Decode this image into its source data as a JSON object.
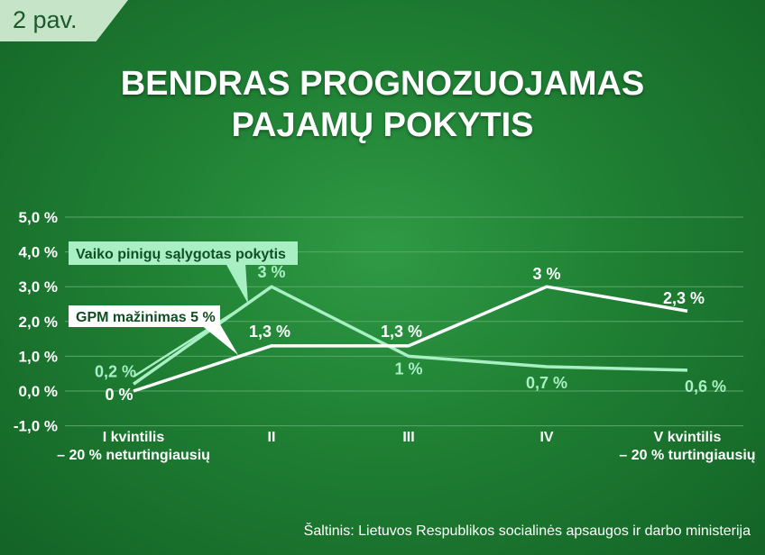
{
  "figure_tag": "2 pav.",
  "title_lines": [
    "BENDRAS PROGNOZUOJAMAS",
    "PAJAMŲ POKYTIS"
  ],
  "source": "Šaltinis: Lietuvos Respublikos socialinės apsaugos ir darbo ministerija",
  "colors": {
    "background": "#1f7f33",
    "series_light": "#a8f0c4",
    "series_white": "#ffffff",
    "grid": "#5aa86a"
  },
  "chart_data": {
    "type": "line",
    "categories": [
      [
        "I kvintilis",
        "– 20 % neturtingiausių"
      ],
      [
        "II"
      ],
      [
        "III"
      ],
      [
        "IV"
      ],
      [
        "V kvintilis",
        "– 20 % turtingiausių"
      ]
    ],
    "y_ticks": [
      5,
      4,
      3,
      2,
      1,
      0,
      -1
    ],
    "y_tick_labels": [
      "5,0 %",
      "4,0 %",
      "3,0 %",
      "2,0 %",
      "1,0 %",
      "0,0 %",
      "-1,0 %"
    ],
    "ylim": [
      -1,
      5
    ],
    "grid": true,
    "series": [
      {
        "name": "Vaiko pinigų sąlygotas pokytis",
        "color": "#a8f0c4",
        "values": [
          0.2,
          3.0,
          1.0,
          0.7,
          0.6
        ],
        "labels": [
          "0,2 %",
          "3 %",
          "1 %",
          "0,7 %",
          "0,6 %"
        ]
      },
      {
        "name": "GPM mažinimas 5 %",
        "color": "#ffffff",
        "values": [
          0.0,
          1.3,
          1.3,
          3.0,
          2.3
        ],
        "labels": [
          "0 %",
          "1,3 %",
          "1,3 %",
          "3 %",
          "2,3 %"
        ]
      }
    ]
  }
}
